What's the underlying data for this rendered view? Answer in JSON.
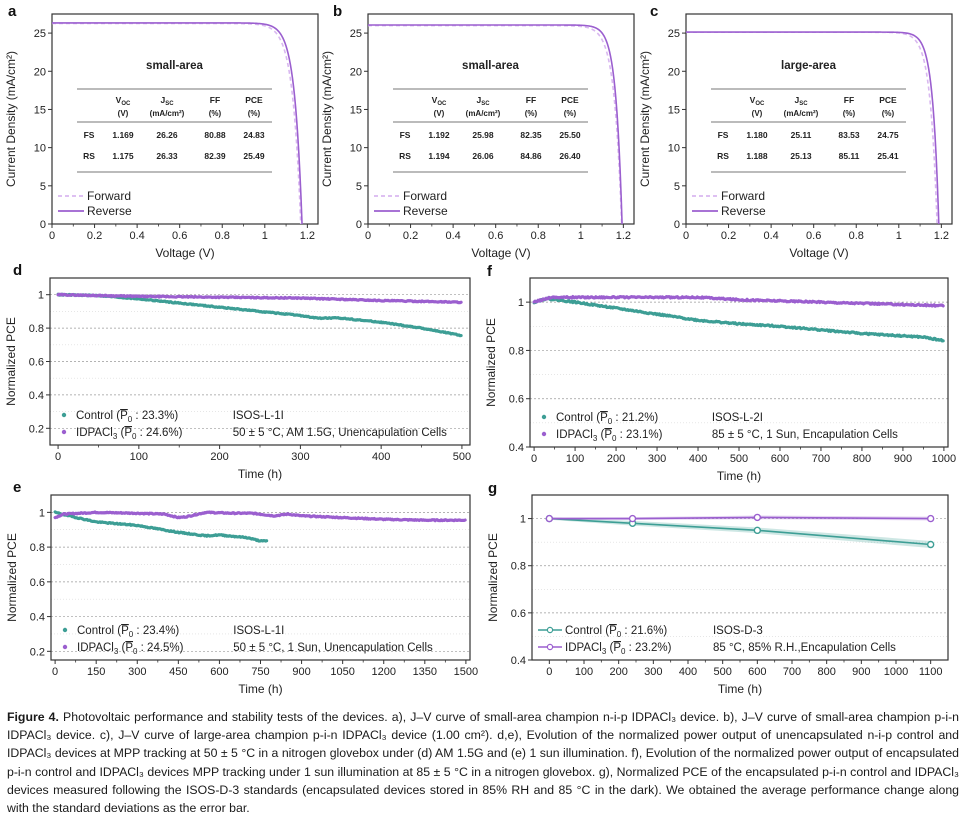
{
  "figure": {
    "caption_label": "Figure 4.",
    "caption_text": "Photovoltaic performance and stability tests of the devices. a), J–V curve of small-area champion n-i-p IDPACl₃ device. b), J–V curve of small-area champion p-i-n IDPACl₃ device. c), J–V curve of large-area champion p-i-n IDPACl₃ device (1.00 cm²). d,e), Evolution of the normalized power output of unencapsulated n-i-p control and IDPACl₃ devices at MPP tracking at 50 ± 5 °C in a nitrogen glovebox under (d) AM 1.5G and (e) 1 sun illumination. f), Evolution of the normalized power output of encapsulated p-i-n control and IDPACl₃ devices MPP tracking under 1 sun illumination at 85 ± 5 °C in a nitrogen glovebox. g), Normalized PCE of the encapsulated p-i-n control and IDPACl₃ devices measured following the ISOS-D-3 standards (encapsulated devices stored in 85% RH and 85 °C in the dark). We obtained the average performance change along with the standard deviations as the error bar."
  },
  "colors": {
    "purple": "#9b5fcf",
    "purple_light": "#d9b8f0",
    "teal": "#3d9e95"
  },
  "chart_data": [
    {
      "panel": "a",
      "type": "line",
      "xlabel": "Voltage (V)",
      "ylabel": "Current Density (mA/cm²)",
      "xlim": [
        0,
        1.25
      ],
      "ylim": [
        0,
        27.5
      ],
      "xticks": [
        "0",
        "0.2",
        "0.4",
        "0.6",
        "0.8",
        "1",
        "1.2"
      ],
      "yticks": [
        "0",
        "5",
        "10",
        "15",
        "20",
        "25"
      ],
      "inset_title": "small-area",
      "table": {
        "header_top": [
          "",
          "V",
          "J",
          "FF",
          "PCE"
        ],
        "header_sub": [
          "",
          "OC",
          "SC",
          "",
          ""
        ],
        "units": [
          "",
          "(V)",
          "(mA/cm²)",
          "(%)",
          "(%)"
        ],
        "rows": [
          [
            "FS",
            "1.169",
            "26.26",
            "80.88",
            "24.83"
          ],
          [
            "RS",
            "1.175",
            "26.33",
            "82.39",
            "25.49"
          ]
        ]
      },
      "series": [
        {
          "name": "Forward",
          "style": "dashed",
          "voc": 1.169,
          "jsc": 26.26,
          "ff": 80.88
        },
        {
          "name": "Reverse",
          "style": "solid",
          "voc": 1.175,
          "jsc": 26.33,
          "ff": 82.39
        }
      ],
      "legend": [
        "Forward",
        "Reverse"
      ]
    },
    {
      "panel": "b",
      "type": "line",
      "xlabel": "Voltage (V)",
      "ylabel": "Current Density (mA/cm²)",
      "xlim": [
        0,
        1.25
      ],
      "ylim": [
        0,
        27.5
      ],
      "xticks": [
        "0",
        "0.2",
        "0.4",
        "0.6",
        "0.8",
        "1",
        "1.2"
      ],
      "yticks": [
        "0",
        "5",
        "10",
        "15",
        "20",
        "25"
      ],
      "inset_title": "small-area",
      "table": {
        "header_top": [
          "",
          "V",
          "J",
          "FF",
          "PCE"
        ],
        "header_sub": [
          "",
          "OC",
          "SC",
          "",
          ""
        ],
        "units": [
          "",
          "(V)",
          "(mA/cm²)",
          "(%)",
          "(%)"
        ],
        "rows": [
          [
            "FS",
            "1.192",
            "25.98",
            "82.35",
            "25.50"
          ],
          [
            "RS",
            "1.194",
            "26.06",
            "84.86",
            "26.40"
          ]
        ]
      },
      "series": [
        {
          "name": "Forward",
          "style": "dashed",
          "voc": 1.192,
          "jsc": 25.98,
          "ff": 82.35
        },
        {
          "name": "Reverse",
          "style": "solid",
          "voc": 1.194,
          "jsc": 26.06,
          "ff": 84.86
        }
      ],
      "legend": [
        "Forward",
        "Reverse"
      ]
    },
    {
      "panel": "c",
      "type": "line",
      "xlabel": "Voltage (V)",
      "ylabel": "Current Density (mA/cm²)",
      "xlim": [
        0,
        1.25
      ],
      "ylim": [
        0,
        27.5
      ],
      "xticks": [
        "0",
        "0.2",
        "0.4",
        "0.6",
        "0.8",
        "1",
        "1.2"
      ],
      "yticks": [
        "0",
        "5",
        "10",
        "15",
        "20",
        "25"
      ],
      "inset_title": "large-area",
      "table": {
        "header_top": [
          "",
          "V",
          "J",
          "FF",
          "PCE"
        ],
        "header_sub": [
          "",
          "OC",
          "SC",
          "",
          ""
        ],
        "units": [
          "",
          "(V)",
          "(mA/cm²)",
          "(%)",
          "(%)"
        ],
        "rows": [
          [
            "FS",
            "1.180",
            "25.11",
            "83.53",
            "24.75"
          ],
          [
            "RS",
            "1.188",
            "25.13",
            "85.11",
            "25.41"
          ]
        ]
      },
      "series": [
        {
          "name": "Forward",
          "style": "dashed",
          "voc": 1.18,
          "jsc": 25.11,
          "ff": 83.53
        },
        {
          "name": "Reverse",
          "style": "solid",
          "voc": 1.188,
          "jsc": 25.13,
          "ff": 85.11
        }
      ],
      "legend": [
        "Forward",
        "Reverse"
      ]
    },
    {
      "panel": "d",
      "type": "scatter",
      "xlabel": "Time (h)",
      "ylabel": "Normalized PCE",
      "xlim": [
        -10,
        510
      ],
      "ylim": [
        0.1,
        1.1
      ],
      "xticks": [
        0,
        100,
        200,
        300,
        400,
        500
      ],
      "yticks": [
        0.2,
        0.4,
        0.6,
        0.8,
        1
      ],
      "grid": true,
      "series": [
        {
          "name": "Control",
          "legend_value": "23.3%",
          "color": "teal",
          "x": [
            0,
            50,
            100,
            150,
            200,
            250,
            300,
            320,
            350,
            400,
            450,
            500
          ],
          "y": [
            1.0,
            0.995,
            0.975,
            0.95,
            0.925,
            0.9,
            0.875,
            0.86,
            0.86,
            0.835,
            0.8,
            0.755
          ]
        },
        {
          "name": "IDPACl₃",
          "legend_value": "24.6%",
          "color": "purple",
          "x": [
            0,
            100,
            200,
            300,
            400,
            500
          ],
          "y": [
            1.0,
            0.99,
            0.985,
            0.98,
            0.965,
            0.955
          ]
        }
      ],
      "annotation": [
        "ISOS-L-1I",
        "50 ± 5 °C, AM 1.5G, Unencapulation Cells"
      ]
    },
    {
      "panel": "e",
      "type": "scatter",
      "xlabel": "Time (h)",
      "ylabel": "Normalized PCE",
      "xlim": [
        -15,
        1515
      ],
      "ylim": [
        0.15,
        1.1
      ],
      "xticks": [
        0,
        150,
        300,
        450,
        600,
        750,
        900,
        1050,
        1200,
        1350,
        1500
      ],
      "yticks": [
        0.2,
        0.4,
        0.6,
        0.8,
        1
      ],
      "grid": true,
      "series": [
        {
          "name": "Control",
          "legend_value": "23.4%",
          "color": "teal",
          "x": [
            0,
            50,
            150,
            300,
            450,
            550,
            600,
            700,
            750,
            775
          ],
          "y": [
            1.0,
            0.98,
            0.945,
            0.925,
            0.885,
            0.865,
            0.87,
            0.855,
            0.835,
            0.835
          ]
        },
        {
          "name": "IDPACl₃",
          "legend_value": "24.5%",
          "color": "purple",
          "x": [
            0,
            30,
            150,
            300,
            400,
            450,
            480,
            550,
            650,
            720,
            800,
            850,
            900,
            1050,
            1200,
            1350,
            1500
          ],
          "y": [
            0.97,
            0.99,
            1.0,
            0.995,
            0.99,
            0.97,
            0.975,
            1.0,
            0.995,
            0.995,
            0.98,
            0.99,
            0.98,
            0.97,
            0.96,
            0.955,
            0.955
          ]
        }
      ],
      "annotation": [
        "ISOS-L-1I",
        "50 ± 5 °C, 1 Sun, Unencapulation Cells"
      ]
    },
    {
      "panel": "f",
      "type": "scatter",
      "xlabel": "Time (h)",
      "ylabel": "Normalized PCE",
      "xlim": [
        -10,
        1010
      ],
      "ylim": [
        0.4,
        1.1
      ],
      "xticks": [
        0,
        100,
        200,
        300,
        400,
        500,
        600,
        700,
        800,
        900,
        1000
      ],
      "yticks": [
        0.4,
        0.6,
        0.8,
        1
      ],
      "grid": true,
      "series": [
        {
          "name": "Control",
          "legend_value": "21.2%",
          "color": "teal",
          "x": [
            0,
            30,
            100,
            200,
            300,
            400,
            500,
            600,
            700,
            800,
            900,
            950,
            1000
          ],
          "y": [
            1.0,
            1.015,
            1.0,
            0.975,
            0.95,
            0.925,
            0.91,
            0.9,
            0.885,
            0.87,
            0.86,
            0.855,
            0.84
          ]
        },
        {
          "name": "IDPACl₃",
          "legend_value": "23.1%",
          "color": "purple",
          "x": [
            0,
            40,
            100,
            200,
            300,
            400,
            500,
            600,
            700,
            800,
            900,
            1000
          ],
          "y": [
            1.0,
            1.02,
            1.02,
            1.02,
            1.02,
            1.02,
            1.01,
            1.005,
            1.0,
            0.995,
            0.99,
            0.985
          ]
        }
      ],
      "annotation": [
        "ISOS-L-2I",
        "85 ± 5 °C, 1 Sun, Encapulation Cells"
      ]
    },
    {
      "panel": "g",
      "type": "line",
      "xlabel": "Time (h)",
      "ylabel": "Normalized PCE",
      "xlim": [
        -50,
        1150
      ],
      "ylim": [
        0.4,
        1.1
      ],
      "xticks": [
        0,
        100,
        200,
        300,
        400,
        500,
        600,
        700,
        800,
        900,
        1000,
        1100
      ],
      "yticks": [
        0.4,
        0.6,
        0.8,
        1
      ],
      "grid": true,
      "series": [
        {
          "name": "Control",
          "legend_value": "21.6%",
          "color": "teal",
          "x": [
            0,
            240,
            600,
            1100
          ],
          "y": [
            1.0,
            0.98,
            0.95,
            0.89
          ],
          "err": [
            0.005,
            0.01,
            0.012,
            0.015
          ]
        },
        {
          "name": "IDPACl₃",
          "legend_value": "23.2%",
          "color": "purple",
          "x": [
            0,
            240,
            600,
            1100
          ],
          "y": [
            1.0,
            1.0,
            1.005,
            1.0
          ],
          "err": [
            0.005,
            0.006,
            0.008,
            0.008
          ]
        }
      ],
      "annotation": [
        "ISOS-D-3",
        "85 °C, 85% R.H.,Encapulation Cells"
      ]
    }
  ]
}
